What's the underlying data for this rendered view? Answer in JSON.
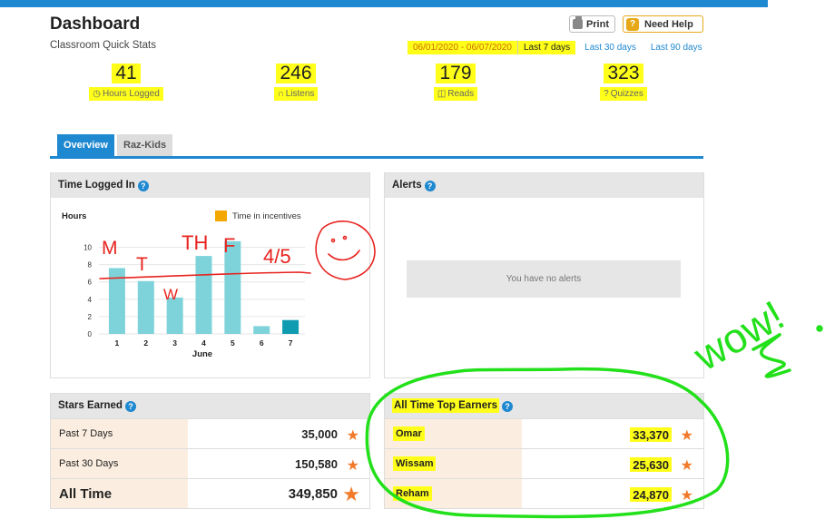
{
  "header": {
    "title": "Dashboard",
    "subtitle": "Classroom Quick Stats",
    "print_label": "Print",
    "help_label": "Need Help",
    "help_icon_glyph": "?",
    "date_range": "06/01/2020 - 06/07/2020",
    "ranges": [
      "Last 7 days",
      "Last 30 days",
      "Last 90 days"
    ]
  },
  "stats": [
    {
      "value": "41",
      "label": "Hours Logged",
      "icon": "clock-icon",
      "glyph": "◷"
    },
    {
      "value": "246",
      "label": "Listens",
      "icon": "headphones-icon",
      "glyph": "∩"
    },
    {
      "value": "179",
      "label": "Reads",
      "icon": "book-icon",
      "glyph": "◫"
    },
    {
      "value": "323",
      "label": "Quizzes",
      "icon": "question-icon",
      "glyph": "?"
    }
  ],
  "tabs": [
    "Overview",
    "Raz-Kids"
  ],
  "time_panel": {
    "title": "Time Logged In",
    "info_glyph": "?"
  },
  "chart_data": {
    "type": "bar",
    "ylabel": "Hours",
    "xlabel": "June",
    "legend": "Time in incentives",
    "categories": [
      "1",
      "2",
      "3",
      "4",
      "5",
      "6",
      "7"
    ],
    "values": [
      7.6,
      6.1,
      4.2,
      9.0,
      10.7,
      0.9,
      1.6
    ],
    "incentive_color": "#0f9bb0",
    "bar_color": "#7dd3d9",
    "legend_color": "#f2a800",
    "yticks": [
      "0",
      "2",
      "4",
      "6",
      "8",
      "10"
    ],
    "ylim": [
      0,
      11
    ]
  },
  "alerts_panel": {
    "title": "Alerts",
    "empty_text": "You have no alerts"
  },
  "stars_panel": {
    "title": "Stars Earned",
    "rows": [
      {
        "label": "Past 7 Days",
        "value": "35,000"
      },
      {
        "label": "Past 30 Days",
        "value": "150,580"
      },
      {
        "label": "All Time",
        "value": "349,850"
      }
    ]
  },
  "top_earners_panel": {
    "title": "All Time Top Earners",
    "rows": [
      {
        "label": "Omar",
        "value": "33,370"
      },
      {
        "label": "Wissam",
        "value": "25,630"
      },
      {
        "label": "Reham",
        "value": "24,870"
      }
    ]
  },
  "annotations": {
    "day_letters": [
      "M",
      "T",
      "W",
      "TH",
      "F"
    ],
    "score": "4/5",
    "exclamation": "wow!",
    "red_color": "#e8231f",
    "green_color": "#22e01a"
  },
  "colors": {
    "accent": "#1e88d0",
    "highlight": "#ffff1a",
    "star": "#f07a2a",
    "help_button": "#e6a817"
  }
}
